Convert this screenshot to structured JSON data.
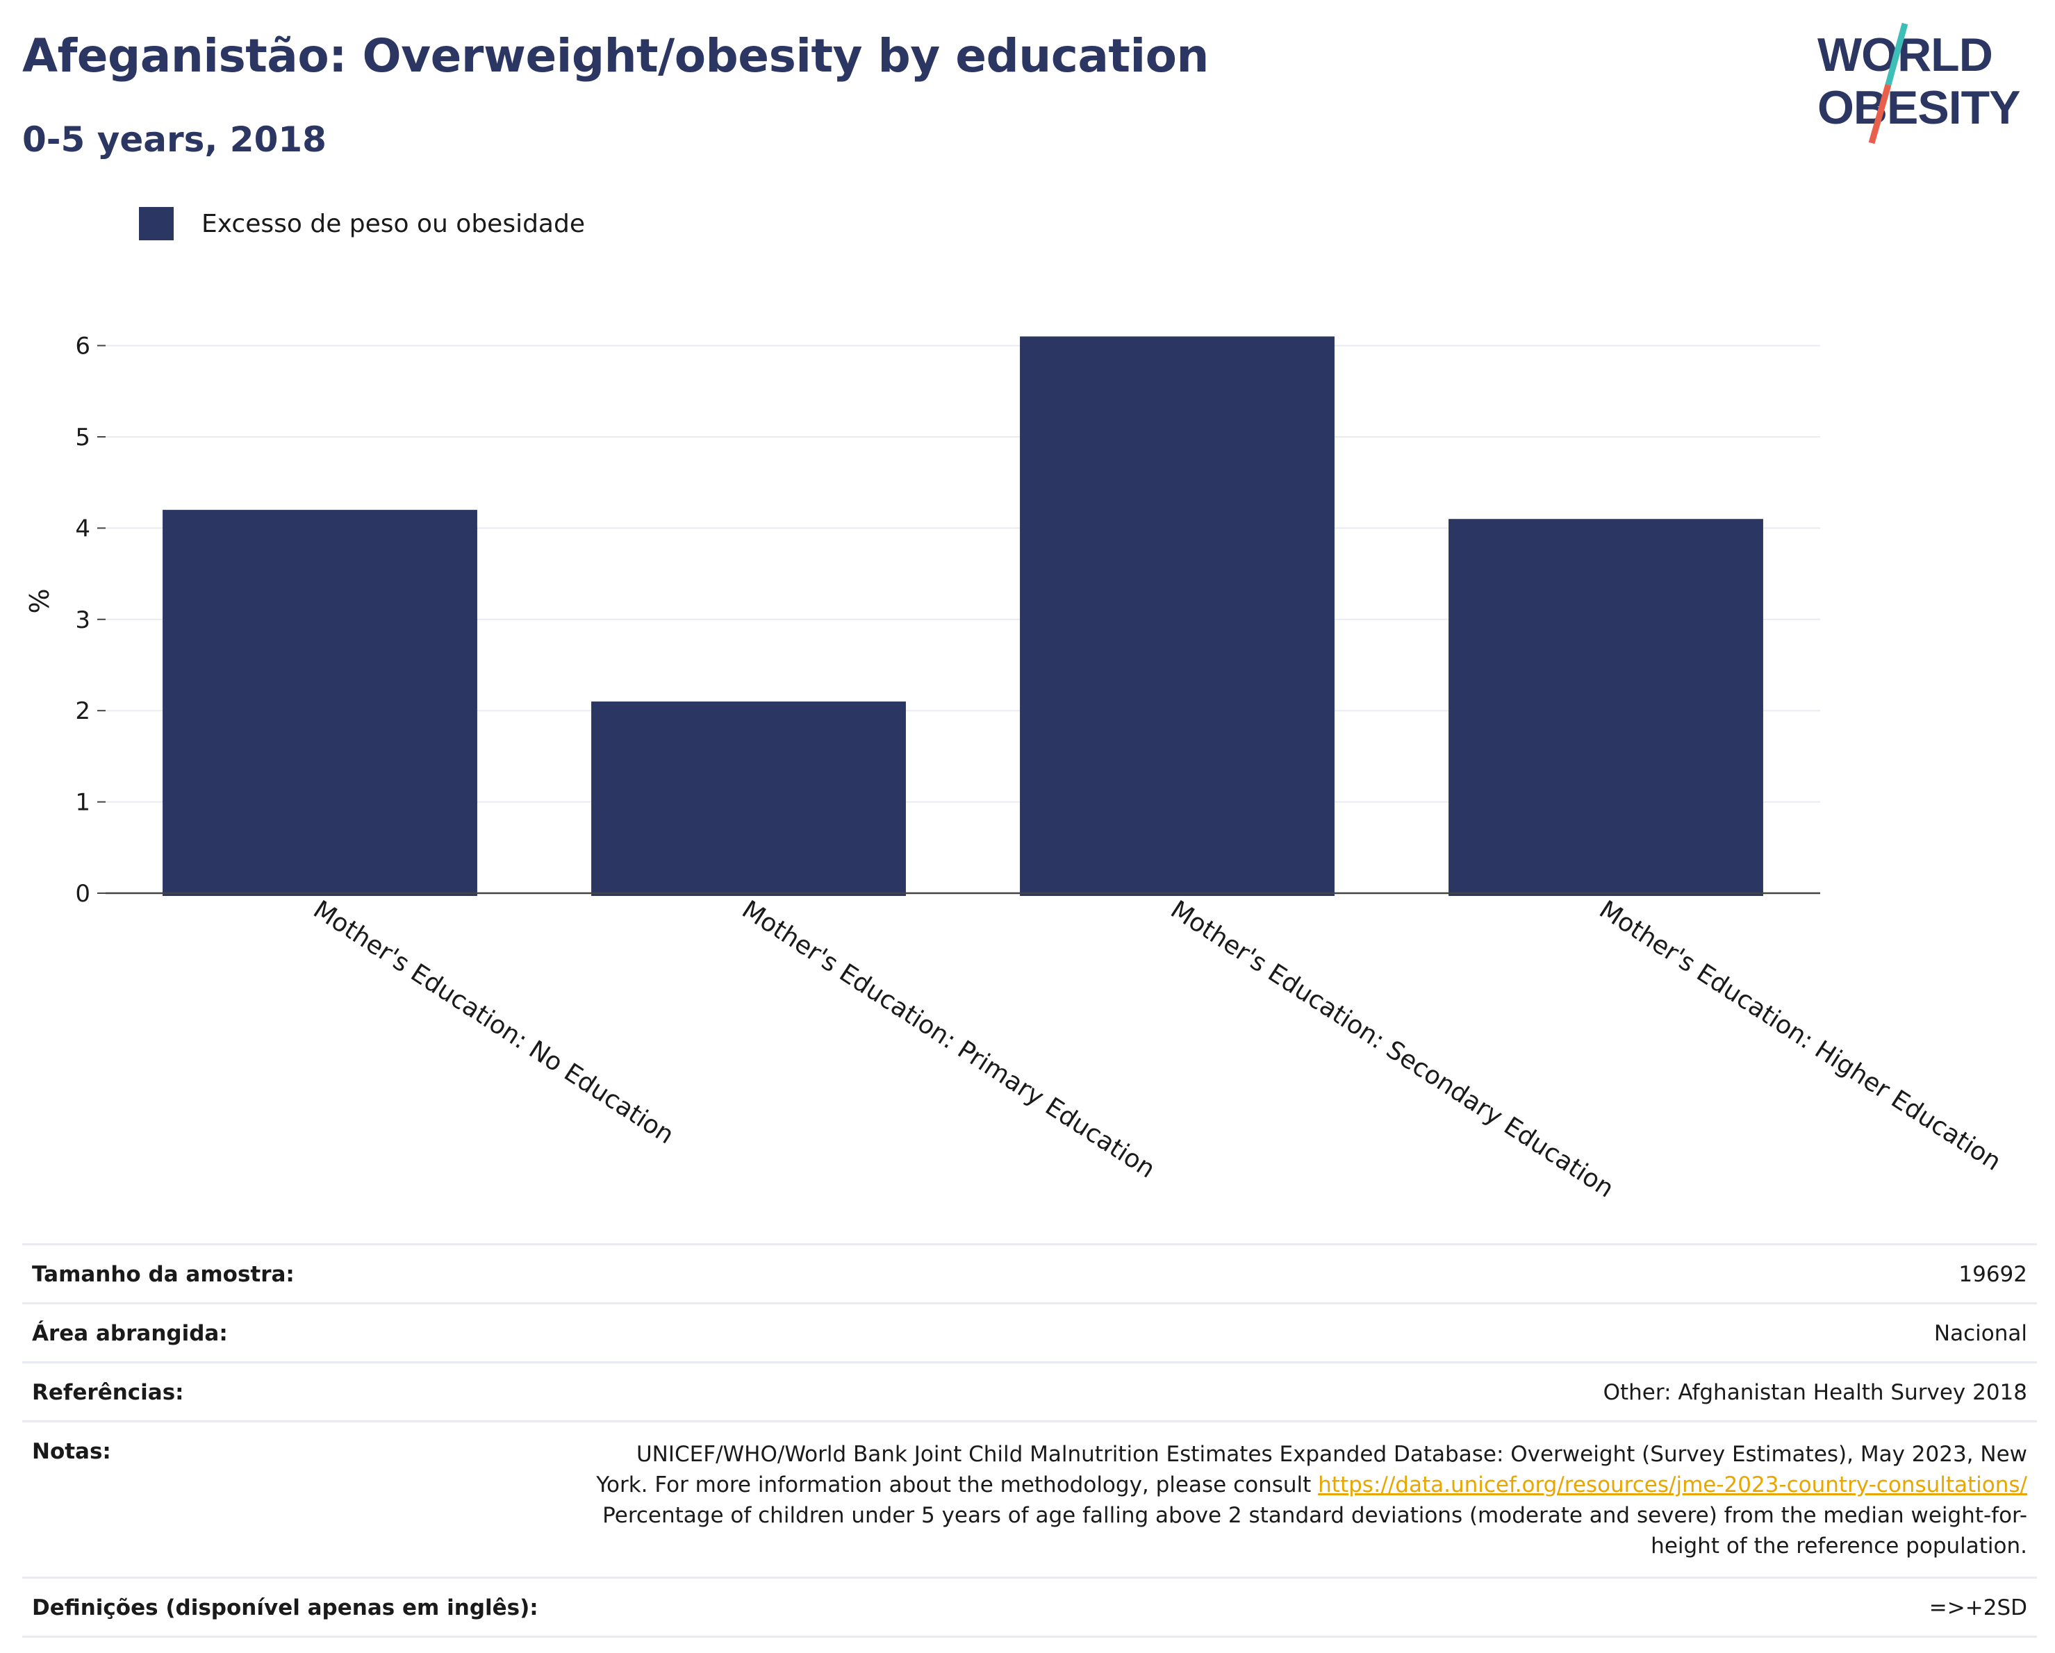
{
  "header": {
    "title": "Afeganistão: Overweight/obesity by education",
    "subtitle": "0-5 years, 2018"
  },
  "logo": {
    "line1": "WORLD",
    "line2": "OBESITY",
    "colors": {
      "text": "#2b3663",
      "slash_top": "#3dbfb8",
      "slash_bottom": "#e8604c"
    }
  },
  "colors": {
    "bar": "#2b3663",
    "gridline": "#e8ebf2",
    "axis": "#444444",
    "link": "#e8a600"
  },
  "legend": {
    "label": "Excesso de peso ou obesidade",
    "position": "top-left"
  },
  "chart_data": {
    "type": "bar",
    "title": "Afeganistão: Overweight/obesity by education",
    "subtitle": "0-5 years, 2018",
    "xlabel": "",
    "ylabel": "%",
    "ylim": [
      0,
      6.4
    ],
    "yticks": [
      0,
      1,
      2,
      3,
      4,
      5,
      6
    ],
    "grid": true,
    "categories": [
      "Mother's Education: No Education",
      "Mother's Education: Primary Education",
      "Mother's Education: Secondary Education",
      "Mother's Education: Higher Education"
    ],
    "series": [
      {
        "name": "Excesso de peso ou obesidade",
        "values": [
          4.2,
          2.1,
          6.1,
          4.1
        ]
      }
    ]
  },
  "info": {
    "sample_size": {
      "label": "Tamanho da amostra:",
      "value": "19692"
    },
    "coverage": {
      "label": "Área abrangida:",
      "value": "Nacional"
    },
    "references": {
      "label": "Referências:",
      "value": "Other: Afghanistan Health Survey 2018"
    },
    "notes": {
      "label": "Notas:",
      "text_before": "UNICEF/WHO/World Bank Joint Child Malnutrition Estimates Expanded Database: Overweight (Survey Estimates), May 2023, New York. For more information about the methodology, please consult ",
      "link": "https://data.unicef.org/resources/jme-2023-country-consultations/",
      "text_after": " Percentage of children under 5 years of age falling above 2 standard deviations (moderate and severe) from the median weight-for-height of the reference population."
    },
    "definitions": {
      "label": "Definições (disponível apenas em inglês):",
      "value": "=>+2SD"
    }
  }
}
